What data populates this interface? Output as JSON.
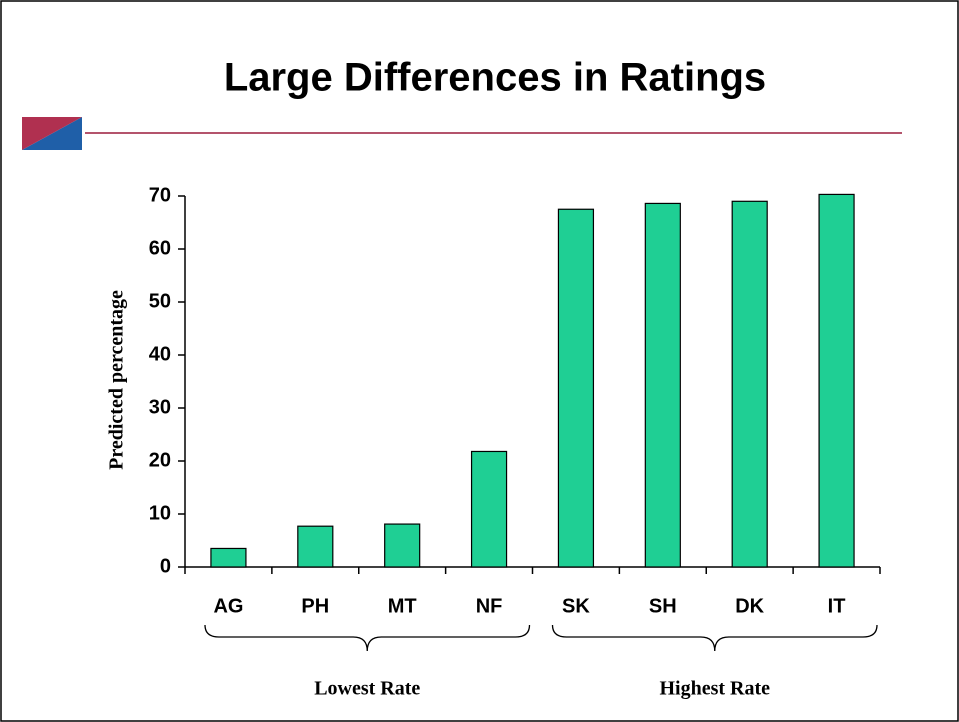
{
  "chart_data": {
    "type": "bar",
    "title": "Large Differences in Ratings",
    "y_label": "Predicted percentage",
    "categories": [
      "AG",
      "PH",
      "MT",
      "NF",
      "SK",
      "SH",
      "DK",
      "IT"
    ],
    "values": [
      3.5,
      7.7,
      8.1,
      21.8,
      67.5,
      68.6,
      69,
      70.3
    ],
    "color": "#1fcf94",
    "ylim": [
      0,
      70
    ],
    "yticks": [
      0,
      10,
      20,
      30,
      40,
      50,
      60,
      70
    ],
    "grid": false,
    "annotations": [
      "Lowest Rate",
      "Highest Rate"
    ]
  }
}
